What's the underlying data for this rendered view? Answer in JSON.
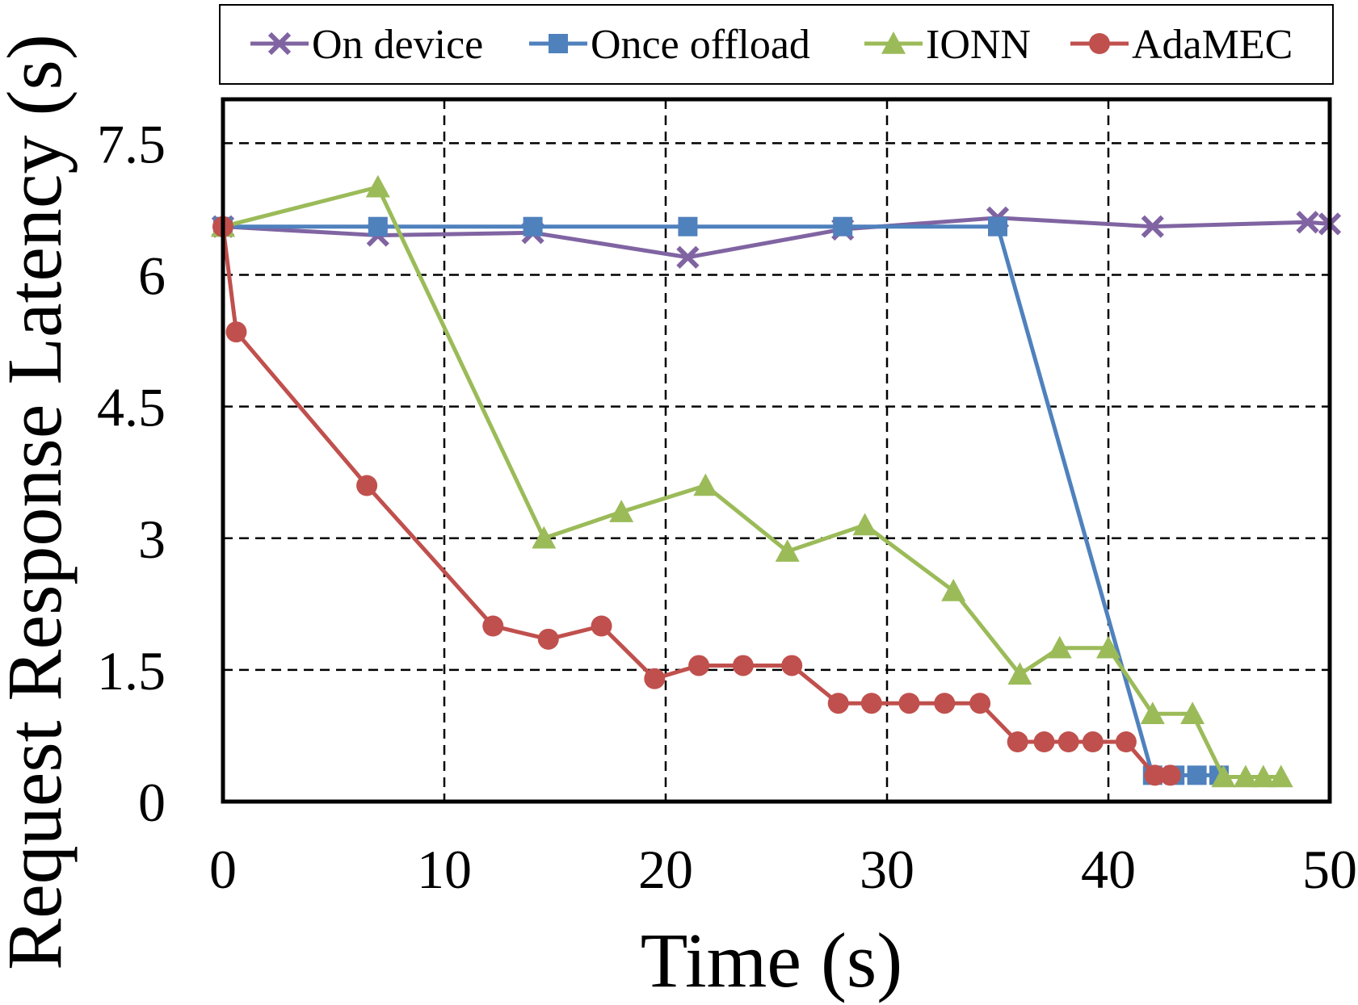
{
  "chart_data": {
    "type": "line",
    "title": "",
    "xlabel": "Time (s)",
    "ylabel": "Request Response Latency (s)",
    "xlim": [
      0,
      50
    ],
    "ylim": [
      0,
      8
    ],
    "x_ticks": [
      0,
      10,
      20,
      30,
      40,
      50
    ],
    "x_tick_labels": [
      "0",
      "10",
      "20",
      "30",
      "40",
      "50"
    ],
    "y_ticks": [
      0,
      1.5,
      3,
      4.5,
      6,
      7.5
    ],
    "y_tick_labels": [
      "0",
      "1.5",
      "3",
      "4.5",
      "6",
      "7.5"
    ],
    "grid": true,
    "legend_position": "top",
    "series": [
      {
        "name": "On device",
        "color": "#8064A2",
        "marker": "x",
        "x": [
          0,
          7,
          14,
          21,
          28,
          35,
          42,
          49,
          50
        ],
        "y": [
          6.55,
          6.45,
          6.48,
          6.2,
          6.52,
          6.65,
          6.55,
          6.6,
          6.58
        ]
      },
      {
        "name": "Once offload",
        "color": "#4F81BD",
        "marker": "square",
        "x": [
          0,
          7,
          14,
          21,
          28,
          35,
          42,
          43,
          44,
          45
        ],
        "y": [
          6.55,
          6.55,
          6.55,
          6.55,
          6.55,
          6.55,
          0.3,
          0.3,
          0.3,
          0.3
        ]
      },
      {
        "name": "IONN",
        "color": "#9BBB59",
        "marker": "triangle",
        "x": [
          0,
          7,
          14.5,
          18,
          21.8,
          25.5,
          29,
          33,
          36,
          37.8,
          40,
          42,
          43.8,
          45.2,
          46.2,
          47,
          47.8
        ],
        "y": [
          6.55,
          7.0,
          3.0,
          3.3,
          3.6,
          2.85,
          3.15,
          2.4,
          1.45,
          1.75,
          1.75,
          1.0,
          1.0,
          0.28,
          0.28,
          0.28,
          0.28
        ]
      },
      {
        "name": "AdaMEC",
        "color": "#C0504D",
        "marker": "circle",
        "x": [
          0,
          0.6,
          6.5,
          12.2,
          14.7,
          17.1,
          19.5,
          21.5,
          23.5,
          25.7,
          27.8,
          29.3,
          31,
          32.6,
          34.2,
          35.9,
          37.1,
          38.2,
          39.3,
          40.8,
          42.1,
          42.8
        ],
        "y": [
          6.55,
          5.35,
          3.6,
          2.0,
          1.85,
          2.0,
          1.4,
          1.55,
          1.55,
          1.55,
          1.12,
          1.12,
          1.12,
          1.12,
          1.12,
          0.68,
          0.68,
          0.68,
          0.68,
          0.68,
          0.3,
          0.3
        ]
      }
    ]
  }
}
